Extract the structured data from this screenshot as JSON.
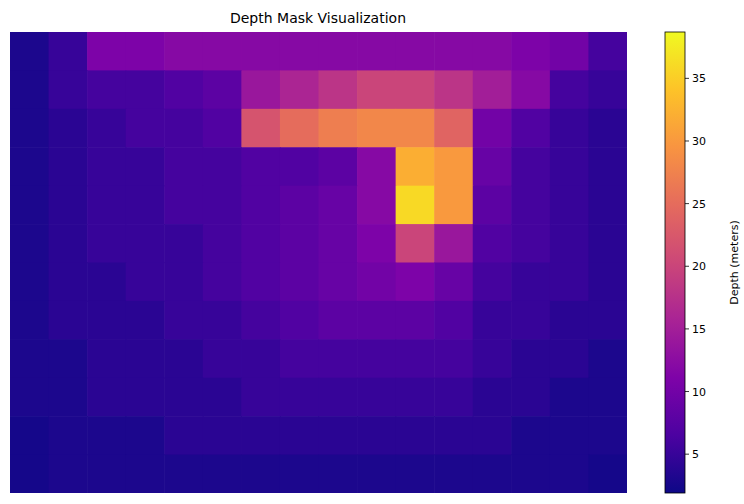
{
  "chart_data": {
    "type": "heatmap",
    "title": "Depth Mask Visualization",
    "tick_labels": false,
    "cells": [
      [
        3,
        5,
        11,
        11,
        12,
        12,
        12,
        12,
        12,
        12,
        12,
        12,
        12,
        11,
        10,
        6
      ],
      [
        3,
        5,
        6,
        6,
        7,
        8,
        14,
        16,
        18,
        20,
        20,
        18,
        15,
        12,
        6,
        5
      ],
      [
        3,
        4,
        5,
        6,
        6,
        7,
        22,
        25,
        27,
        28,
        28,
        24,
        10,
        7,
        5,
        4
      ],
      [
        3,
        4,
        5,
        5,
        6,
        6,
        7,
        7,
        8,
        12,
        32,
        30,
        9,
        6,
        5,
        4
      ],
      [
        3,
        4,
        5,
        5,
        6,
        6,
        7,
        8,
        9,
        12,
        36,
        30,
        8,
        6,
        5,
        4
      ],
      [
        3,
        4,
        5,
        5,
        5,
        6,
        7,
        8,
        9,
        11,
        20,
        14,
        7,
        6,
        5,
        4
      ],
      [
        3,
        4,
        4,
        5,
        5,
        6,
        7,
        8,
        9,
        10,
        11,
        9,
        6,
        5,
        5,
        4
      ],
      [
        3,
        4,
        4,
        4,
        5,
        5,
        6,
        7,
        8,
        8,
        8,
        7,
        5,
        5,
        4,
        4
      ],
      [
        3,
        3,
        4,
        4,
        4,
        5,
        5,
        6,
        6,
        6,
        6,
        6,
        5,
        4,
        4,
        3
      ],
      [
        3,
        3,
        4,
        4,
        4,
        4,
        5,
        5,
        5,
        5,
        5,
        5,
        4,
        4,
        3,
        3
      ],
      [
        2.5,
        3,
        3,
        3,
        4,
        4,
        4,
        4,
        4,
        4,
        4,
        4,
        4,
        3,
        3,
        3
      ],
      [
        2.5,
        3,
        3,
        3,
        3,
        3,
        3,
        3,
        3,
        3,
        3,
        3,
        3,
        3,
        3,
        2.5
      ]
    ],
    "colorbar": {
      "label": "Depth (meters)",
      "lim": [
        1.9,
        38.7
      ],
      "ticks": [
        5,
        10,
        15,
        20,
        25,
        30,
        35
      ]
    }
  }
}
